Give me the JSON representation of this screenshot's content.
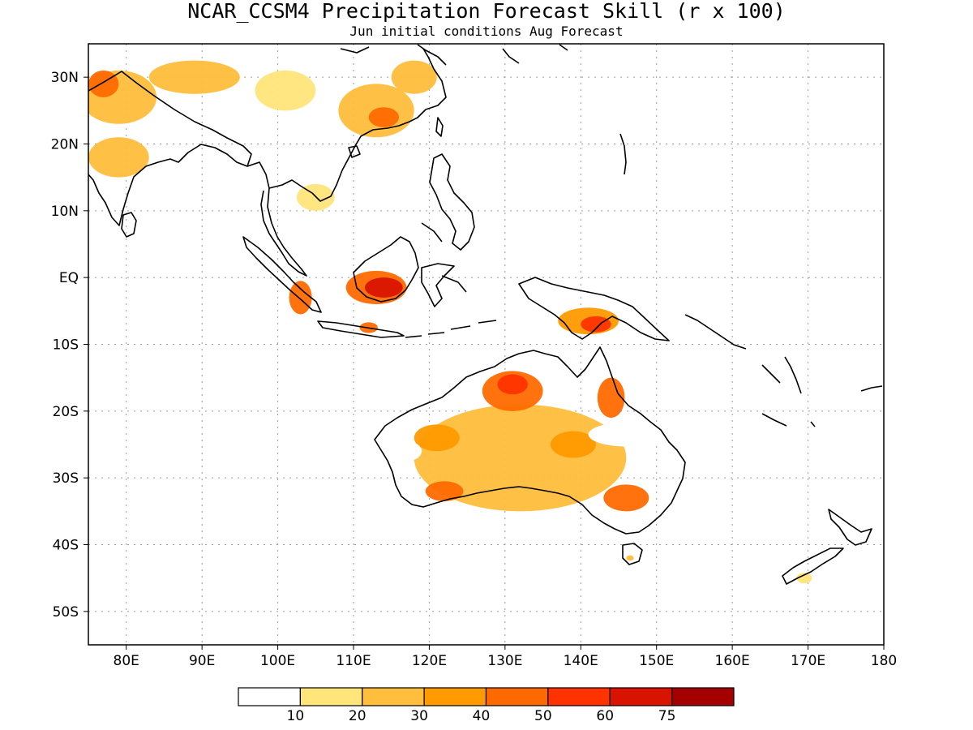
{
  "title": "NCAR_CCSM4 Precipitation Forecast Skill (r x 100)",
  "subtitle": "Jun initial conditions  Aug Forecast",
  "map": {
    "lon_range": [
      75,
      180
    ],
    "lat_range": [
      -55,
      35
    ],
    "lon_ticks": [
      {
        "value": 80,
        "label": "80E"
      },
      {
        "value": 90,
        "label": "90E"
      },
      {
        "value": 100,
        "label": "100E"
      },
      {
        "value": 110,
        "label": "110E"
      },
      {
        "value": 120,
        "label": "120E"
      },
      {
        "value": 130,
        "label": "130E"
      },
      {
        "value": 140,
        "label": "140E"
      },
      {
        "value": 150,
        "label": "150E"
      },
      {
        "value": 160,
        "label": "160E"
      },
      {
        "value": 170,
        "label": "170E"
      },
      {
        "value": 180,
        "label": "180"
      }
    ],
    "lat_ticks": [
      {
        "value": 30,
        "label": "30N"
      },
      {
        "value": 20,
        "label": "20N"
      },
      {
        "value": 10,
        "label": "10N"
      },
      {
        "value": 0,
        "label": "EQ"
      },
      {
        "value": -10,
        "label": "10S"
      },
      {
        "value": -20,
        "label": "20S"
      },
      {
        "value": -30,
        "label": "30S"
      },
      {
        "value": -40,
        "label": "40S"
      },
      {
        "value": -50,
        "label": "50S"
      }
    ],
    "grid": "dotted"
  },
  "legend": {
    "colors": [
      "#ffffff",
      "#ffe57a",
      "#ffbe3b",
      "#ff9a00",
      "#ff6a00",
      "#ff3300",
      "#d81400",
      "#a50000"
    ],
    "labels": [
      "10",
      "20",
      "30",
      "40",
      "50",
      "60",
      "75"
    ]
  },
  "skill_regions": [
    {
      "name": "India north",
      "lon": 79,
      "lat": 27,
      "rx": 5,
      "ry": 4,
      "level": 2
    },
    {
      "name": "India northwest",
      "lon": 77,
      "lat": 29,
      "rx": 2,
      "ry": 2,
      "level": 4
    },
    {
      "name": "India central",
      "lon": 79,
      "lat": 18,
      "rx": 4,
      "ry": 3,
      "level": 2
    },
    {
      "name": "Himalaya",
      "lon": 89,
      "lat": 30,
      "rx": 6,
      "ry": 2.5,
      "level": 2
    },
    {
      "name": "Tibet east",
      "lon": 101,
      "lat": 28,
      "rx": 4,
      "ry": 3,
      "level": 1
    },
    {
      "name": "South China",
      "lon": 113,
      "lat": 25,
      "rx": 5,
      "ry": 4,
      "level": 2
    },
    {
      "name": "South China core",
      "lon": 114,
      "lat": 24,
      "rx": 2,
      "ry": 1.5,
      "level": 4
    },
    {
      "name": "East China",
      "lon": 118,
      "lat": 30,
      "rx": 3,
      "ry": 2.5,
      "level": 2
    },
    {
      "name": "Indochina",
      "lon": 105,
      "lat": 12,
      "rx": 2.5,
      "ry": 2,
      "level": 1
    },
    {
      "name": "Sumatra",
      "lon": 103,
      "lat": -3,
      "rx": 1.5,
      "ry": 2.5,
      "level": 4
    },
    {
      "name": "Borneo",
      "lon": 113,
      "lat": -1.5,
      "rx": 4,
      "ry": 2.5,
      "level": 4
    },
    {
      "name": "Borneo core",
      "lon": 114,
      "lat": -1.5,
      "rx": 2.5,
      "ry": 1.5,
      "level": 6
    },
    {
      "name": "Java",
      "lon": 112,
      "lat": -7.5,
      "rx": 1.2,
      "ry": 0.8,
      "level": 4
    },
    {
      "name": "New Guinea",
      "lon": 141,
      "lat": -6.5,
      "rx": 4,
      "ry": 2,
      "level": 3
    },
    {
      "name": "New Guinea core",
      "lon": 142,
      "lat": -7,
      "rx": 2,
      "ry": 1.2,
      "level": 5
    },
    {
      "name": "Australia",
      "lon": 132,
      "lat": -27,
      "rx": 14,
      "ry": 8,
      "level": 2
    },
    {
      "name": "Australia west",
      "lon": 121,
      "lat": -24,
      "rx": 3,
      "ry": 2,
      "level": 3
    },
    {
      "name": "Australia southwest",
      "lon": 122,
      "lat": -32,
      "rx": 2.5,
      "ry": 1.5,
      "level": 4
    },
    {
      "name": "Northern Territory",
      "lon": 131,
      "lat": -17,
      "rx": 4,
      "ry": 3,
      "level": 4
    },
    {
      "name": "Top End",
      "lon": 131,
      "lat": -16,
      "rx": 2,
      "ry": 1.5,
      "level": 5
    },
    {
      "name": "Queensland north",
      "lon": 144,
      "lat": -18,
      "rx": 1.8,
      "ry": 3,
      "level": 4
    },
    {
      "name": "Victoria",
      "lon": 146,
      "lat": -33,
      "rx": 3,
      "ry": 2,
      "level": 4
    },
    {
      "name": "Central Australia",
      "lon": 139,
      "lat": -25,
      "rx": 3,
      "ry": 2,
      "level": 3
    },
    {
      "name": "New Zealand",
      "lon": 169.5,
      "lat": -45,
      "rx": 1,
      "ry": 0.8,
      "level": 1
    },
    {
      "name": "Tasmania",
      "lon": 146.5,
      "lat": -42,
      "rx": 0.5,
      "ry": 0.4,
      "level": 2
    }
  ],
  "low_skill_regions": [
    {
      "name": "Queensland interior",
      "lon": 146,
      "lat": -23.5,
      "rx": 5,
      "ry": 1.8
    },
    {
      "name": "Western Australia coast",
      "lon": 117,
      "lat": -26,
      "rx": 2,
      "ry": 1.5
    }
  ]
}
